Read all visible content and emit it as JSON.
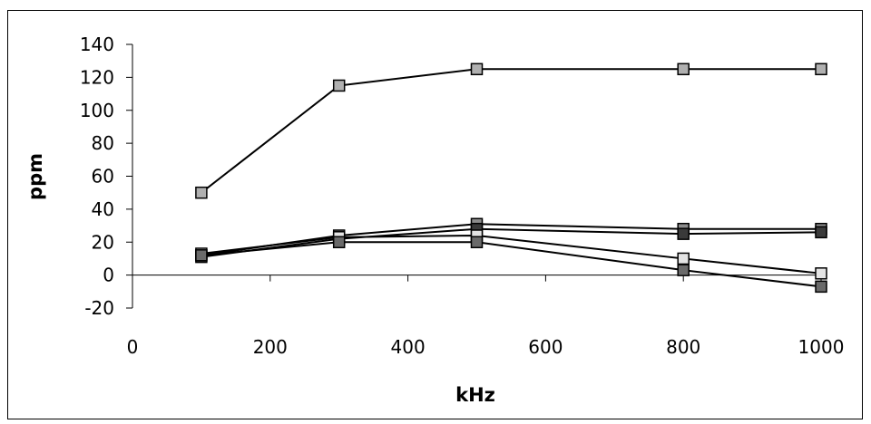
{
  "chart_data": {
    "type": "line",
    "title": "",
    "xlabel": "kHz",
    "ylabel": "ppm",
    "xlim": [
      0,
      1000
    ],
    "ylim": [
      -20,
      140
    ],
    "x_ticks": [
      0,
      200,
      400,
      600,
      800,
      1000
    ],
    "y_ticks": [
      -20,
      0,
      20,
      40,
      60,
      80,
      100,
      120,
      140
    ],
    "x_tick_labels": [
      "0",
      "200",
      "400",
      "600",
      "800",
      "1000"
    ],
    "y_tick_labels": [
      "-20",
      "0",
      "20",
      "40",
      "60",
      "80",
      "100",
      "120",
      "140"
    ],
    "grid": false,
    "legend": "none",
    "x": [
      100,
      300,
      500,
      800,
      1000
    ],
    "series": [
      {
        "values": [
          50,
          115,
          125,
          125,
          125
        ],
        "color": "#b0b0b0"
      },
      {
        "values": [
          12,
          24,
          31,
          28,
          28
        ],
        "color": "#8c8c8c"
      },
      {
        "values": [
          11,
          22,
          28,
          25,
          26
        ],
        "color": "#3a3a3a"
      },
      {
        "values": [
          13,
          23,
          24,
          10,
          1
        ],
        "color": "#e4e4e4"
      },
      {
        "values": [
          12,
          20,
          20,
          3,
          -7
        ],
        "color": "#6a6a6a"
      }
    ]
  }
}
